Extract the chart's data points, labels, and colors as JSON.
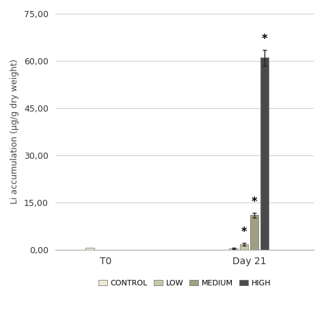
{
  "groups": [
    "T0",
    "Day 21"
  ],
  "categories": [
    "CONTROL",
    "LOW",
    "MEDIUM",
    "HIGH"
  ],
  "colors": [
    "#ede8d0",
    "#c8c8a8",
    "#a0a080",
    "#4a4a4a"
  ],
  "bar_values": {
    "T0": [
      0.6,
      0.0,
      0.0,
      0.0
    ],
    "Day 21": [
      0.45,
      1.8,
      11.0,
      61.0
    ]
  },
  "bar_errors": {
    "T0": [
      0.0,
      0.0,
      0.0,
      0.0
    ],
    "Day 21": [
      0.15,
      0.5,
      0.7,
      2.5
    ]
  },
  "star_labels": {
    "T0": [
      false,
      false,
      false,
      false
    ],
    "Day 21": [
      false,
      true,
      true,
      true
    ]
  },
  "ylabel": "Li accumulation (μg/g dry weight)",
  "ylim": [
    0,
    75
  ],
  "yticks": [
    0.0,
    15.0,
    30.0,
    45.0,
    60.0,
    75.0
  ],
  "ytick_labels": [
    "0,00",
    "15,00",
    "30,00",
    "45,00",
    "60,00",
    "75,00"
  ],
  "background_color": "#ffffff",
  "grid_color": "#d0d0d0",
  "bar_width": 0.12,
  "group_centers": [
    1.0,
    3.0
  ],
  "group_labels": [
    "T0",
    "Day 21"
  ],
  "legend_labels": [
    "CONTROL",
    "LOW",
    "MEDIUM",
    "HIGH"
  ]
}
